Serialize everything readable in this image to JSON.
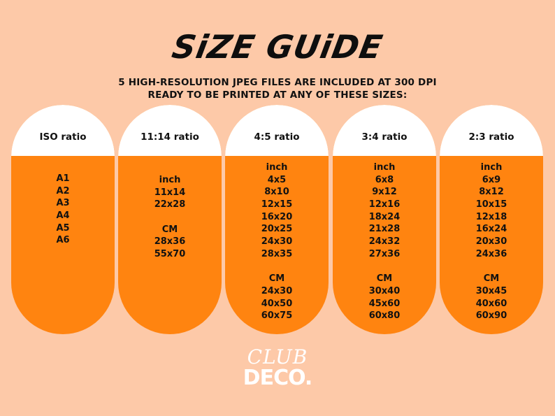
{
  "header": {
    "title": "SiZE GUiDE",
    "subtitle_line1": "5 HIGH-RESOLUTION JPEG FILES ARE INCLUDED AT 300 DPI",
    "subtitle_line2": "READY TO BE PRINTED AT ANY OF THESE SIZES:"
  },
  "columns": [
    {
      "ratio": "ISO ratio",
      "inch_label": "",
      "inch_sizes": [
        "A1",
        "A2",
        "A3",
        "A4",
        "A5",
        "A6"
      ],
      "cm_label": "",
      "cm_sizes": []
    },
    {
      "ratio": "11:14 ratio",
      "inch_label": "inch",
      "inch_sizes": [
        "11x14",
        "22x28"
      ],
      "cm_label": "CM",
      "cm_sizes": [
        "28x36",
        "55x70"
      ]
    },
    {
      "ratio": "4:5 ratio",
      "inch_label": "inch",
      "inch_sizes": [
        "4x5",
        "8x10",
        "12x15",
        "16x20",
        "20x25",
        "24x30",
        "28x35"
      ],
      "cm_label": "CM",
      "cm_sizes": [
        "24x30",
        "40x50",
        "60x75"
      ]
    },
    {
      "ratio": "3:4 ratio",
      "inch_label": "inch",
      "inch_sizes": [
        "6x8",
        "9x12",
        "12x16",
        "18x24",
        "21x28",
        "24x32",
        "27x36"
      ],
      "cm_label": "CM",
      "cm_sizes": [
        "30x40",
        "45x60",
        "60x80"
      ]
    },
    {
      "ratio": "2:3 ratio",
      "inch_label": "inch",
      "inch_sizes": [
        "6x9",
        "8x12",
        "10x15",
        "12x18",
        "16x24",
        "20x30",
        "24x36"
      ],
      "cm_label": "CM",
      "cm_sizes": [
        "30x45",
        "40x60",
        "60x90"
      ]
    }
  ],
  "logo": {
    "line1": "CLUB",
    "line2": "DECO."
  },
  "colors": {
    "background": "#fdc9a8",
    "pill_orange": "#ff8410",
    "pill_head": "#ffffff"
  }
}
